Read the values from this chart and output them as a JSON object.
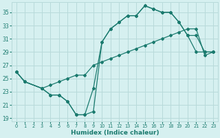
{
  "title": "",
  "xlabel": "Humidex (Indice chaleur)",
  "background_color": "#d6f0f0",
  "grid_color": "#b8dada",
  "line_color": "#1a7a6e",
  "xlim": [
    -0.5,
    23.5
  ],
  "ylim": [
    18.5,
    36.5
  ],
  "yticks": [
    19,
    21,
    23,
    25,
    27,
    29,
    31,
    33,
    35
  ],
  "xticks": [
    0,
    1,
    2,
    3,
    4,
    5,
    6,
    7,
    8,
    9,
    10,
    11,
    12,
    13,
    14,
    15,
    16,
    17,
    18,
    19,
    20,
    21,
    22,
    23
  ],
  "series": [
    {
      "x": [
        0,
        1,
        3,
        4,
        5,
        6,
        7,
        8,
        9,
        10,
        11,
        12,
        13,
        14,
        15,
        16,
        17,
        18,
        19,
        20,
        21,
        22,
        23
      ],
      "y": [
        26.0,
        24.5,
        23.5,
        22.5,
        22.5,
        21.5,
        19.5,
        19.5,
        20.0,
        30.5,
        32.5,
        33.5,
        34.5,
        34.5,
        36.0,
        35.5,
        35.0,
        35.0,
        33.5,
        31.5,
        31.5,
        29.0,
        29.0
      ]
    },
    {
      "x": [
        0,
        1,
        3,
        4,
        5,
        6,
        7,
        8,
        9,
        10,
        11,
        12,
        13,
        14,
        15,
        16,
        17,
        18,
        19,
        20,
        21,
        22,
        23
      ],
      "y": [
        26.0,
        24.5,
        23.5,
        22.5,
        22.5,
        21.5,
        19.5,
        19.5,
        23.5,
        30.5,
        32.5,
        33.5,
        34.5,
        34.5,
        36.0,
        35.5,
        35.0,
        35.0,
        33.5,
        31.5,
        29.0,
        29.0,
        29.0
      ]
    },
    {
      "x": [
        0,
        1,
        3,
        4,
        5,
        6,
        7,
        8,
        9,
        10,
        11,
        12,
        13,
        14,
        15,
        16,
        17,
        18,
        19,
        20,
        21,
        22,
        23
      ],
      "y": [
        26.0,
        24.5,
        23.5,
        24.0,
        24.5,
        25.0,
        25.5,
        25.5,
        27.0,
        27.5,
        28.0,
        28.5,
        29.0,
        29.5,
        30.0,
        30.5,
        31.0,
        31.5,
        32.0,
        32.5,
        32.5,
        28.5,
        29.0
      ]
    }
  ]
}
